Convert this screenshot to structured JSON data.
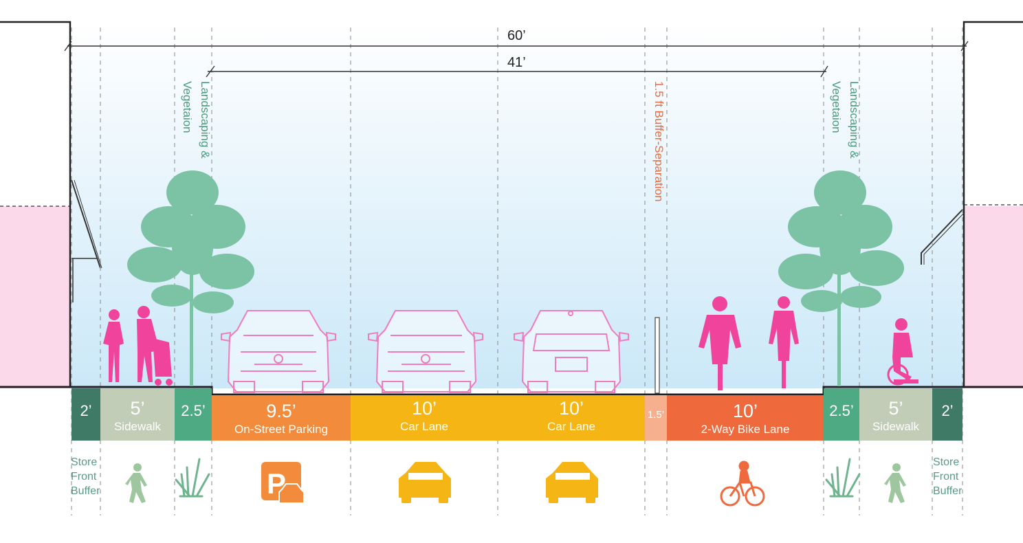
{
  "dimensions": {
    "total": "60’",
    "curb_to_curb": "41’"
  },
  "labels": {
    "landscaping_left_line1": "Landscaping &",
    "landscaping_left_line2": "Vegetaion",
    "landscaping_right_line1": "Landscaping &",
    "landscaping_right_line2": "Vegetaion",
    "buffer_separation": "1.5 ft Buffer-Separation"
  },
  "segments": [
    {
      "id": "storefront-left",
      "width": "2’",
      "name": "",
      "color": "#3e7a66"
    },
    {
      "id": "sidewalk-left",
      "width": "5’",
      "name": "Sidewalk",
      "color": "#c2cdb8"
    },
    {
      "id": "landscape-left",
      "width": "2.5’",
      "name": "",
      "color": "#4daa83"
    },
    {
      "id": "parking",
      "width": "9.5’",
      "name": "On-Street Parking",
      "color": "#f28c3c"
    },
    {
      "id": "car-lane-1",
      "width": "10’",
      "name": "Car Lane",
      "color": "#f5b514"
    },
    {
      "id": "car-lane-2",
      "width": "10’",
      "name": "Car Lane",
      "color": "#f5b514"
    },
    {
      "id": "buffer",
      "width": "1.5’",
      "name": "",
      "color": "#f7b08e"
    },
    {
      "id": "bike-lane",
      "width": "10’",
      "name": "2-Way Bike Lane",
      "color": "#ee6a3d"
    },
    {
      "id": "landscape-right",
      "width": "2.5’",
      "name": "",
      "color": "#4daa83"
    },
    {
      "id": "sidewalk-right",
      "width": "5’",
      "name": "Sidewalk",
      "color": "#c2cdb8"
    },
    {
      "id": "storefront-right",
      "width": "2’",
      "name": "",
      "color": "#3e7a66"
    }
  ],
  "store_front_buffer_left": {
    "line1": "Store",
    "line2": "Front",
    "line3": "Buffer"
  },
  "store_front_buffer_right": {
    "line1": "Store",
    "line2": "Front",
    "line3": "Buffer"
  },
  "icons": {
    "pedestrian": "pedestrian-icon",
    "grass": "grass-icon",
    "parking": "parking-icon",
    "car": "car-icon",
    "bike": "cyclist-icon"
  },
  "colors": {
    "people": "#f0449c",
    "trees": "#7cc2a4",
    "label_green": "#4a9a7a",
    "label_orange": "#ee6a3d",
    "sky_top": "#ffffff",
    "sky_bottom": "#cde9f8",
    "building_pink": "#fbd9ea"
  }
}
